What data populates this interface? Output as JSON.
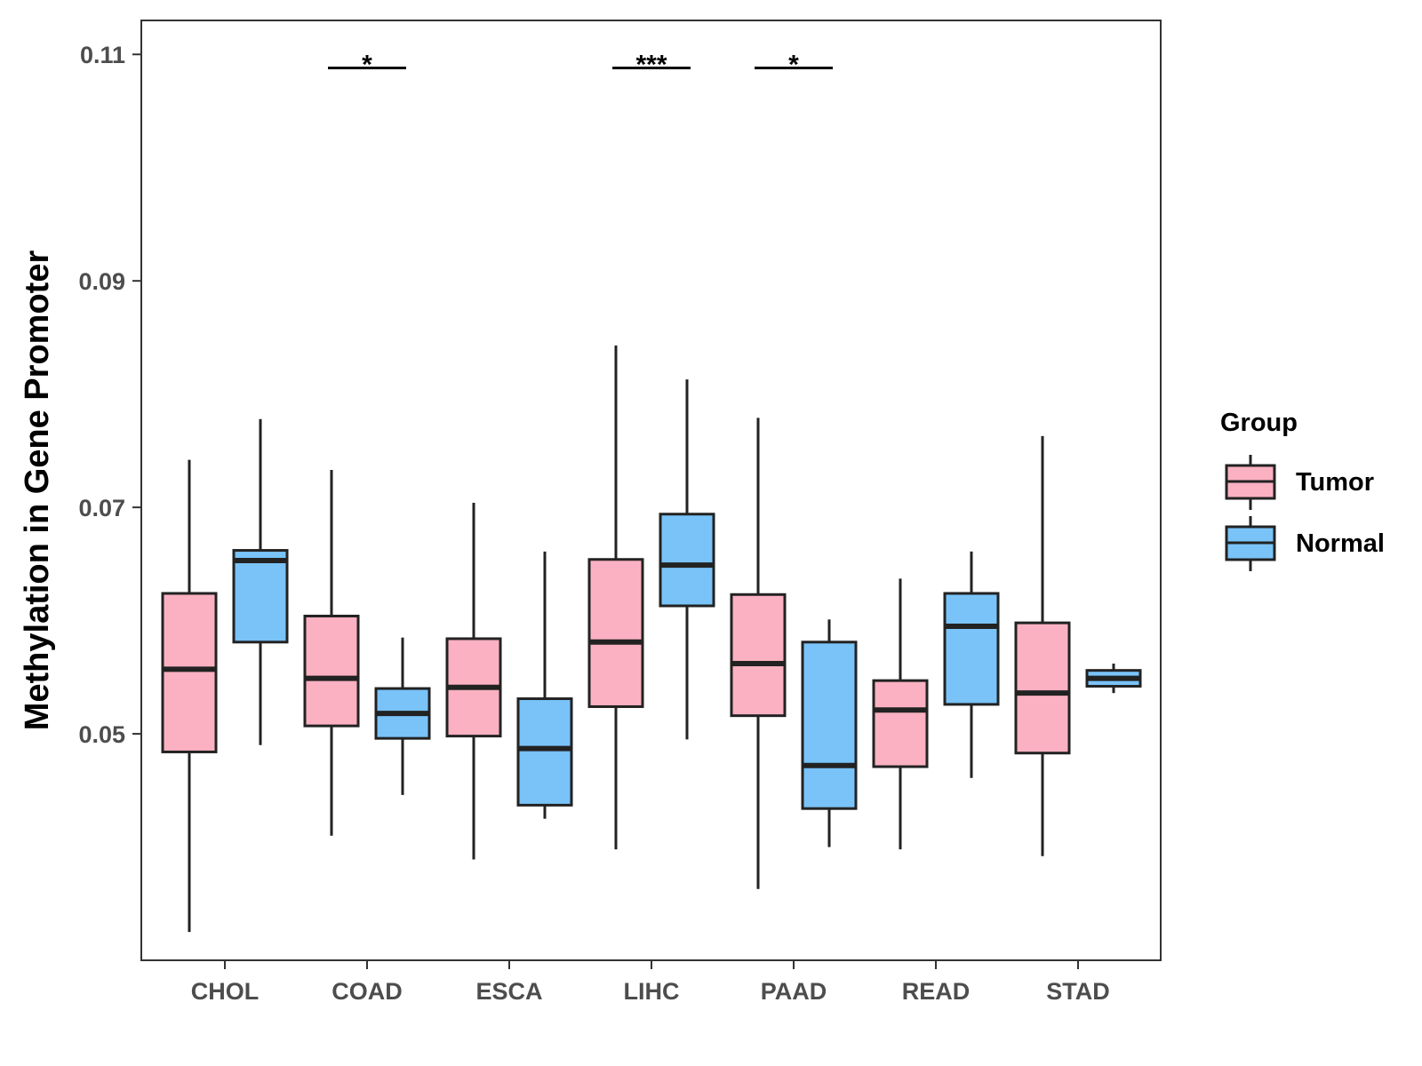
{
  "chart_data": {
    "type": "boxplot",
    "title": "",
    "xlabel": "",
    "ylabel": "Methylation in Gene Promoter",
    "ylim": [
      0.03,
      0.113
    ],
    "yticks": [
      "0.05",
      "0.07",
      "0.09",
      "0.11"
    ],
    "ytick_values": [
      0.05,
      0.07,
      0.09,
      0.11
    ],
    "categories": [
      "CHOL",
      "COAD",
      "ESCA",
      "LIHC",
      "PAAD",
      "READ",
      "STAD"
    ],
    "legend": {
      "title": "Group",
      "position": "right",
      "items": [
        {
          "name": "Tumor",
          "color": "#FBB1C2"
        },
        {
          "name": "Normal",
          "color": "#79C3F8"
        }
      ]
    },
    "series": [
      {
        "name": "Tumor",
        "color": "#FBB1C2",
        "boxes": [
          {
            "whisker_low": 0.0325,
            "q1": 0.0484,
            "median": 0.0557,
            "q3": 0.0624,
            "whisker_high": 0.0742
          },
          {
            "whisker_low": 0.041,
            "q1": 0.0507,
            "median": 0.0549,
            "q3": 0.0604,
            "whisker_high": 0.0733
          },
          {
            "whisker_low": 0.0389,
            "q1": 0.0498,
            "median": 0.0541,
            "q3": 0.0584,
            "whisker_high": 0.0704
          },
          {
            "whisker_low": 0.0398,
            "q1": 0.0524,
            "median": 0.0581,
            "q3": 0.0654,
            "whisker_high": 0.0843
          },
          {
            "whisker_low": 0.0363,
            "q1": 0.0516,
            "median": 0.0562,
            "q3": 0.0623,
            "whisker_high": 0.0779
          },
          {
            "whisker_low": 0.0398,
            "q1": 0.0471,
            "median": 0.0521,
            "q3": 0.0547,
            "whisker_high": 0.0637
          },
          {
            "whisker_low": 0.0392,
            "q1": 0.0483,
            "median": 0.0536,
            "q3": 0.0598,
            "whisker_high": 0.0763
          }
        ]
      },
      {
        "name": "Normal",
        "color": "#79C3F8",
        "boxes": [
          {
            "whisker_low": 0.049,
            "q1": 0.0581,
            "median": 0.0653,
            "q3": 0.0662,
            "whisker_high": 0.0778
          },
          {
            "whisker_low": 0.0446,
            "q1": 0.0496,
            "median": 0.0518,
            "q3": 0.054,
            "whisker_high": 0.0585
          },
          {
            "whisker_low": 0.0425,
            "q1": 0.0437,
            "median": 0.0487,
            "q3": 0.0531,
            "whisker_high": 0.0661
          },
          {
            "whisker_low": 0.0495,
            "q1": 0.0613,
            "median": 0.0649,
            "q3": 0.0694,
            "whisker_high": 0.0813
          },
          {
            "whisker_low": 0.04,
            "q1": 0.0434,
            "median": 0.0472,
            "q3": 0.0581,
            "whisker_high": 0.0601
          },
          {
            "whisker_low": 0.0461,
            "q1": 0.0526,
            "median": 0.0595,
            "q3": 0.0624,
            "whisker_high": 0.0661
          },
          {
            "whisker_low": 0.0536,
            "q1": 0.0542,
            "median": 0.0549,
            "q3": 0.0556,
            "whisker_high": 0.0562
          }
        ]
      }
    ],
    "annotations": [
      {
        "category": "COAD",
        "label": "*",
        "y": 0.1088
      },
      {
        "category": "LIHC",
        "label": "***",
        "y": 0.1088
      },
      {
        "category": "PAAD",
        "label": "*",
        "y": 0.1088
      }
    ]
  },
  "colors": {
    "outline": "#222222",
    "panel_border": "#333333",
    "tick_text": "#4d4d4d"
  }
}
